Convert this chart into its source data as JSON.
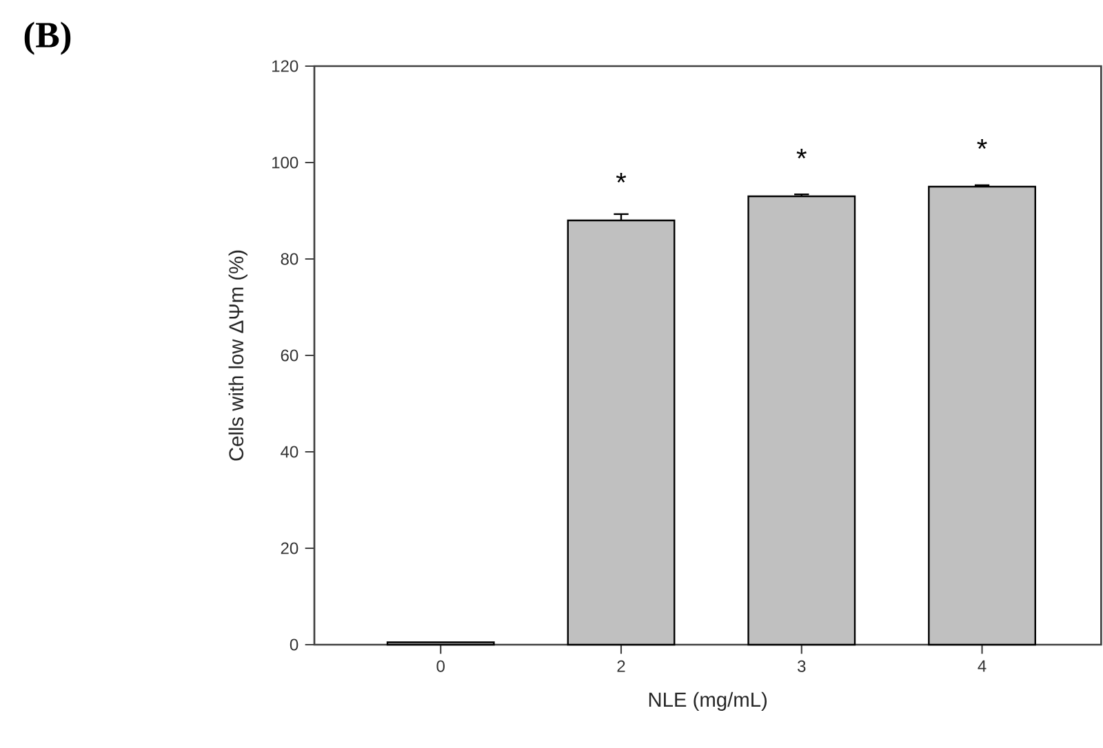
{
  "chart_data": {
    "type": "bar",
    "title": "(B)",
    "xlabel": "NLE (mg/mL)",
    "ylabel": "Cells with low ΔΨm (%)",
    "categories": [
      "0",
      "2",
      "3",
      "4"
    ],
    "values": [
      0.5,
      88,
      93,
      95
    ],
    "errors": [
      null,
      1.3,
      0.4,
      0.3
    ],
    "color": "#c0c0c0",
    "ylim": [
      0,
      120
    ],
    "yticks": [
      0,
      20,
      40,
      60,
      80,
      100,
      120
    ],
    "annotations": [
      "*",
      "*",
      "*"
    ]
  }
}
